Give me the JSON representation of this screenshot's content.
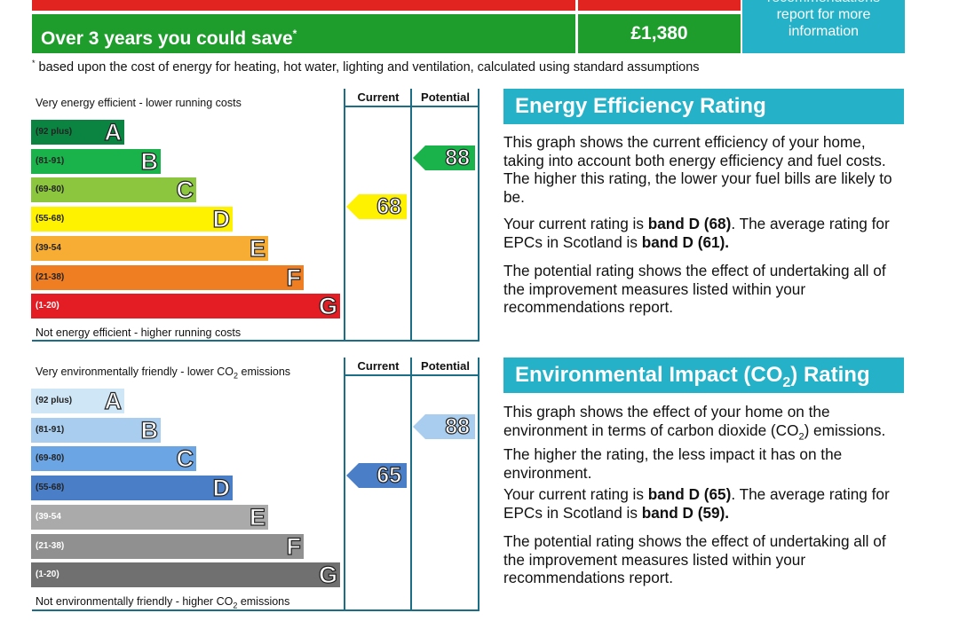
{
  "savings": {
    "label": "Over 3 years you could save",
    "asterisk": "*",
    "value": "£1,380",
    "recommendations_lines": [
      "recommendations",
      "report for more",
      "information"
    ],
    "footnote_mark": "*",
    "footnote": "based upon the cost of energy for heating, hot water, lighting and ventilation, calculated using standard assumptions"
  },
  "chart_data": [
    {
      "type": "bar",
      "title": "Energy Efficiency Rating",
      "top_caption": "Very energy efficient - lower running costs",
      "bottom_caption": "Not energy efficient - higher running costs",
      "column_headers": [
        "Current",
        "Potential"
      ],
      "bands": [
        {
          "letter": "A",
          "range": "(92 plus)",
          "color": "#0b8442"
        },
        {
          "letter": "B",
          "range": "(81-91)",
          "color": "#19b24b"
        },
        {
          "letter": "C",
          "range": "(69-80)",
          "color": "#8cc63f"
        },
        {
          "letter": "D",
          "range": "(55-68)",
          "color": "#fff200"
        },
        {
          "letter": "E",
          "range": "(39-54",
          "color": "#f7ac34"
        },
        {
          "letter": "F",
          "range": "(21-38)",
          "color": "#ef7d22"
        },
        {
          "letter": "G",
          "range": "(1-20)",
          "color": "#e31d23"
        }
      ],
      "current": {
        "value": 68,
        "band": "D",
        "color": "#fff200"
      },
      "potential": {
        "value": 88,
        "band": "B",
        "color": "#19b24b"
      }
    },
    {
      "type": "bar",
      "title": "Environmental Impact (CO2) Rating",
      "top_caption": "Very environmentally friendly - lower CO2 emissions",
      "bottom_caption": "Not environmentally friendly - higher CO2 emissions",
      "column_headers": [
        "Current",
        "Potential"
      ],
      "bands": [
        {
          "letter": "A",
          "range": "(92 plus)",
          "color": "#cfe6f7"
        },
        {
          "letter": "B",
          "range": "(81-91)",
          "color": "#a8cdee"
        },
        {
          "letter": "C",
          "range": "(69-80)",
          "color": "#6ba5e4"
        },
        {
          "letter": "D",
          "range": "(55-68)",
          "color": "#4a7fc8"
        },
        {
          "letter": "E",
          "range": "(39-54",
          "color": "#aaaaaa"
        },
        {
          "letter": "F",
          "range": "(21-38)",
          "color": "#909090"
        },
        {
          "letter": "G",
          "range": "(1-20)",
          "color": "#707070"
        }
      ],
      "current": {
        "value": 65,
        "band": "D",
        "color": "#4a7fc8"
      },
      "potential": {
        "value": 88,
        "band": "B",
        "color": "#a8cdee"
      }
    }
  ],
  "energy_panel": {
    "heading": "Energy Efficiency Rating",
    "p1": "This graph shows the current efficiency of your home, taking into account both energy efficiency and fuel costs. The higher this rating, the lower your fuel bills are likely to be.",
    "p2_a": "Your current rating is ",
    "p2_b": "band D (68)",
    "p2_c": ". The average rating for EPCs in Scotland is ",
    "p2_d": "band D (61).",
    "p3": "The potential rating shows the effect of undertaking all of the improvement measures listed within your recommendations report."
  },
  "env_panel": {
    "heading_a": "Environmental Impact (CO",
    "heading_sub": "2",
    "heading_b": ") Rating",
    "p1_a": "This graph shows the effect of your home on the environment in terms of carbon dioxide (CO",
    "p1_sub": "2",
    "p1_b": ") emissions. The higher the rating, the less impact it has on the environment.",
    "p2_a": "Your current rating is ",
    "p2_b": "band D (65)",
    "p2_c": ". The average rating for EPCs in Scotland is ",
    "p2_d": "band D (59).",
    "p3": "The potential rating shows the effect of undertaking all of the improvement measures listed within your recommendations report."
  }
}
